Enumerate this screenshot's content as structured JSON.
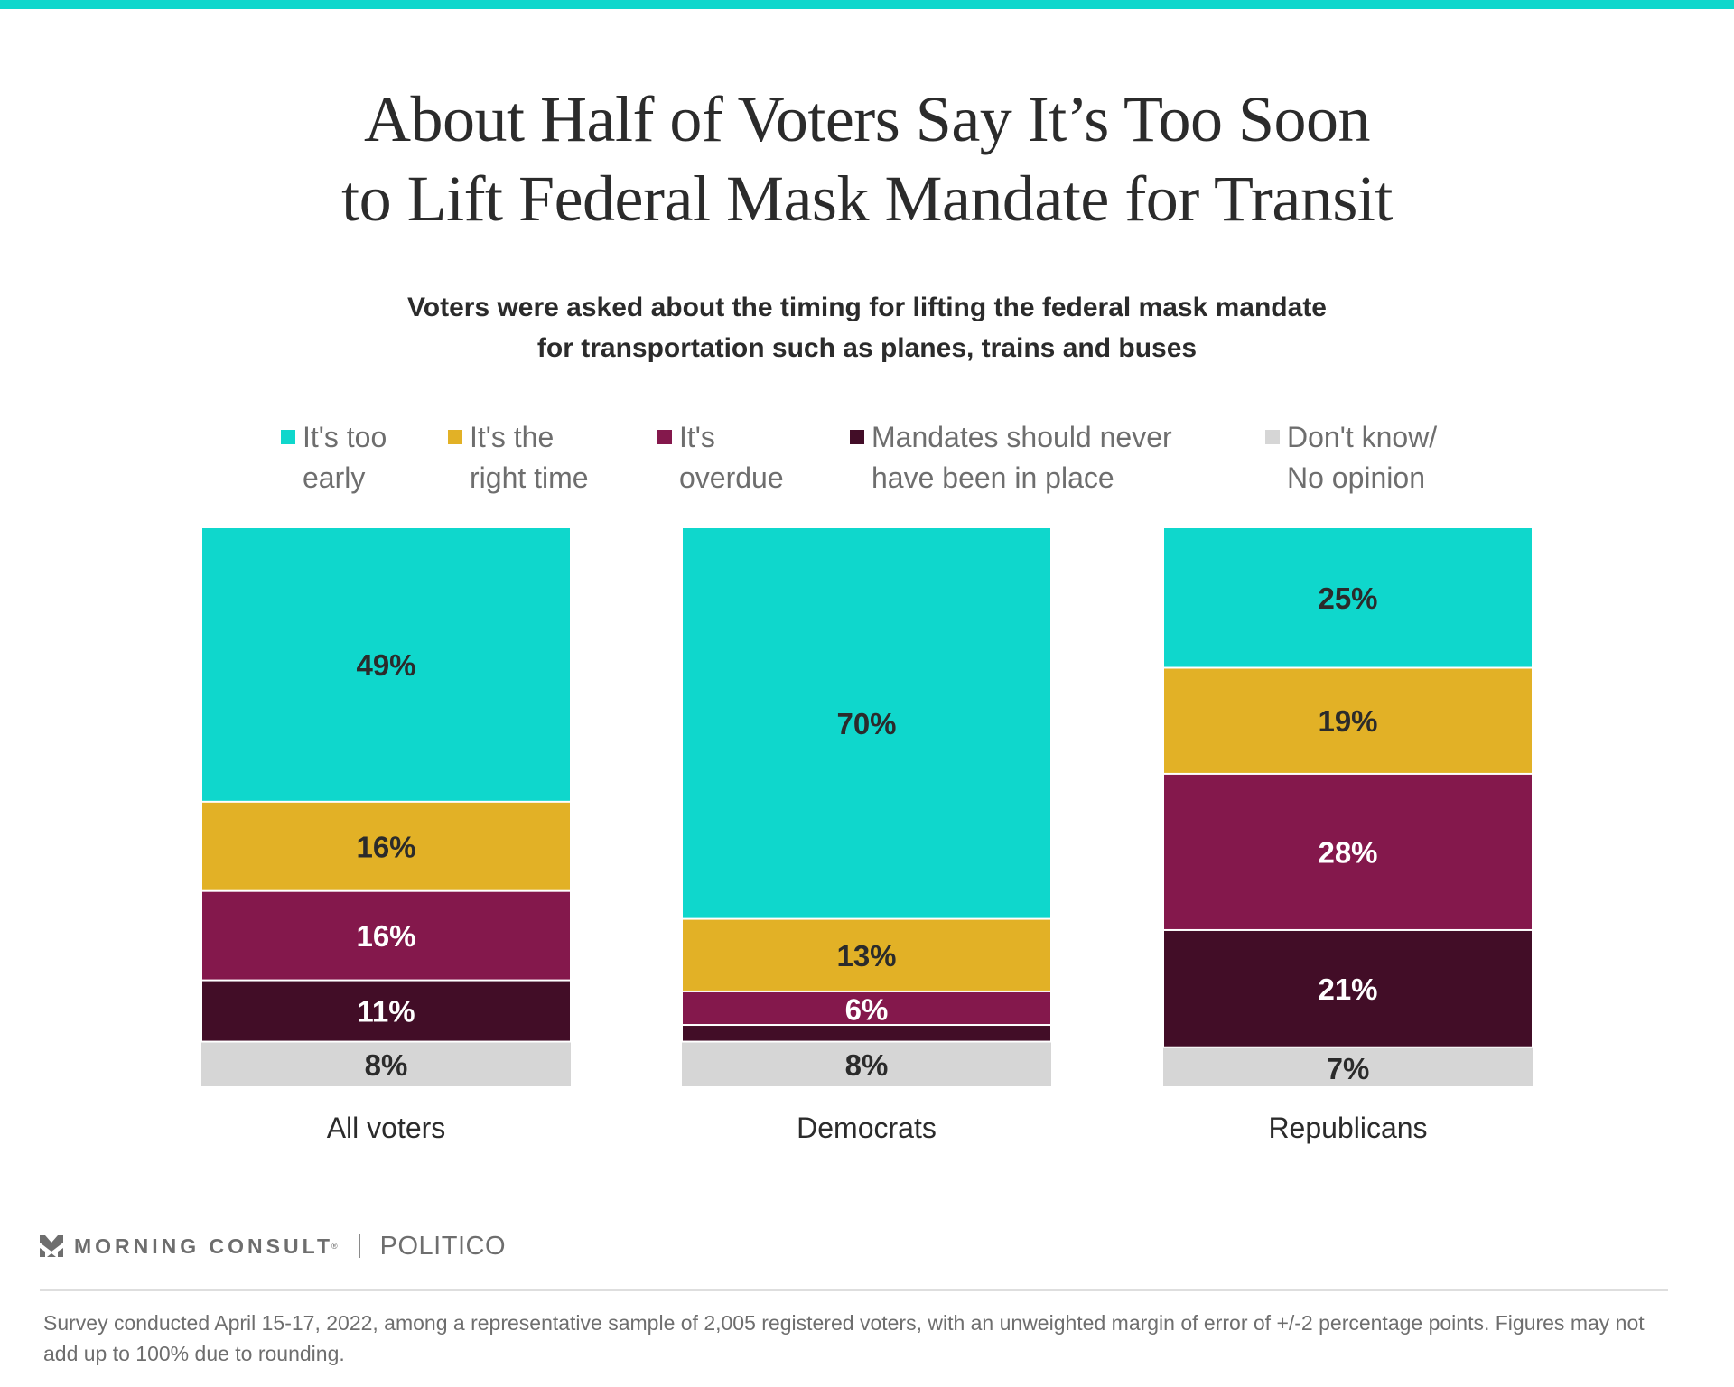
{
  "header": {
    "title_line1": "About Half of Voters Say It’s Too Soon",
    "title_line2": "to Lift Federal Mask Mandate for Transit",
    "subtitle_line1": "Voters were asked about the timing for lifting the federal mask mandate",
    "subtitle_line2": "for transportation such as planes, trains and buses"
  },
  "colors": {
    "accent_bar": "#0fd7cc",
    "too_early": "#0fd7cc",
    "right_time": "#e2b126",
    "overdue": "#84184c",
    "never": "#420d27",
    "dont_know": "#d6d6d6",
    "label_dark": "#2b2b2b",
    "label_light": "#ffffff"
  },
  "legend": [
    {
      "label": "It's too\nearly",
      "color": "#0fd7cc"
    },
    {
      "label": "It's the\nright time",
      "color": "#e2b126"
    },
    {
      "label": "It's\noverdue",
      "color": "#84184c"
    },
    {
      "label": "Mandates should never\nhave been in place",
      "color": "#420d27"
    },
    {
      "label": "Don't know/\nNo opinion",
      "color": "#d6d6d6"
    }
  ],
  "chart_data": {
    "type": "bar",
    "stacked": true,
    "orientation": "vertical",
    "title": "About Half of Voters Say It’s Too Soon to Lift Federal Mask Mandate for Transit",
    "subtitle": "Voters were asked about the timing for lifting the federal mask mandate for transportation such as planes, trains and buses",
    "categories": [
      "All voters",
      "Democrats",
      "Republicans"
    ],
    "series": [
      {
        "name": "It's too early",
        "color": "#0fd7cc",
        "values": [
          49,
          70,
          25
        ],
        "labels": [
          "49%",
          "70%",
          "25%"
        ],
        "label_color": "#2b2b2b"
      },
      {
        "name": "It's the right time",
        "color": "#e2b126",
        "values": [
          16,
          13,
          19
        ],
        "labels": [
          "16%",
          "13%",
          "19%"
        ],
        "label_color": "#2b2b2b"
      },
      {
        "name": "It's overdue",
        "color": "#84184c",
        "values": [
          16,
          6,
          28
        ],
        "labels": [
          "16%",
          "6%",
          "28%"
        ],
        "label_color": "#ffffff"
      },
      {
        "name": "Mandates should never have been in place",
        "color": "#420d27",
        "values": [
          11,
          3,
          21
        ],
        "labels": [
          "11%",
          "",
          "21%"
        ],
        "label_color": "#ffffff"
      },
      {
        "name": "Don't know/No opinion",
        "color": "#d6d6d6",
        "values": [
          8,
          8,
          7
        ],
        "labels": [
          "8%",
          "8%",
          "7%"
        ],
        "label_color": "#2b2b2b"
      }
    ],
    "xlabel": "",
    "ylabel": "",
    "ylim": [
      0,
      100
    ],
    "grid": false,
    "legend_position": "top"
  },
  "footer": {
    "brand_name": "MORNING CONSULT",
    "brand_reg": "®",
    "partner": "POLITICO",
    "note": "Survey conducted April 15-17, 2022, among a representative sample of 2,005 registered voters, with an unweighted margin of error of +/-2 percentage points. Figures may not add up to 100% due to rounding."
  }
}
